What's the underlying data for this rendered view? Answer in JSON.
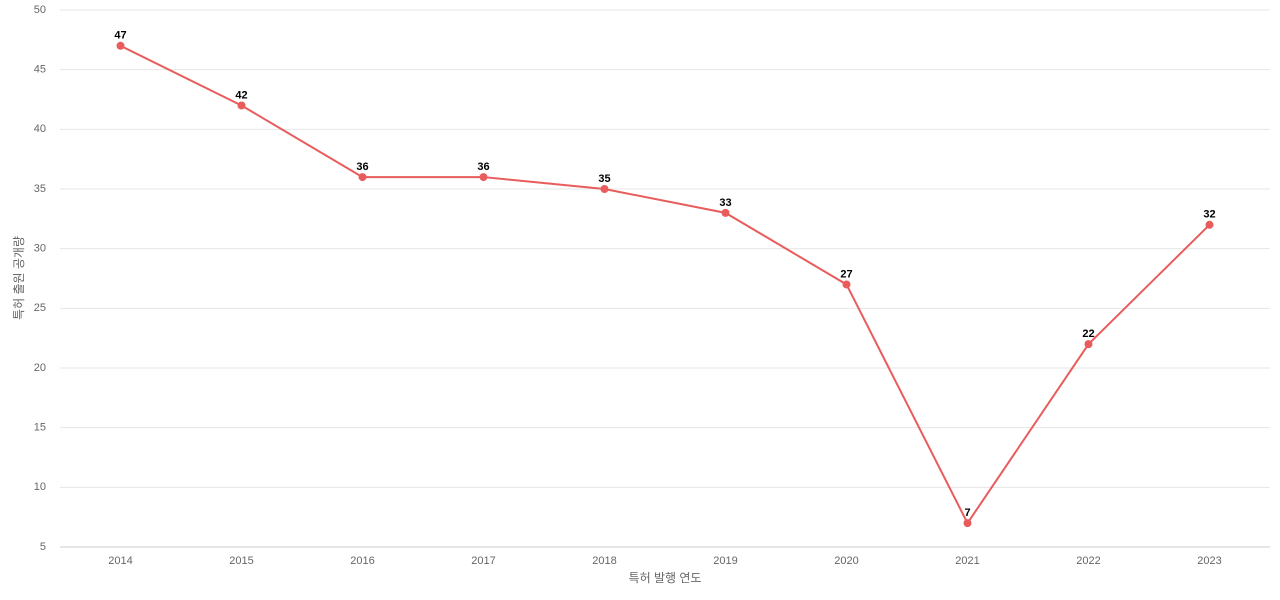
{
  "chart_data": {
    "type": "line",
    "x_label": "특허 발행 연도",
    "y_label": "특허 출원 공개량",
    "categories": [
      "2014",
      "2015",
      "2016",
      "2017",
      "2018",
      "2019",
      "2020",
      "2021",
      "2022",
      "2023"
    ],
    "values": [
      47,
      42,
      36,
      36,
      35,
      33,
      27,
      7,
      22,
      32
    ],
    "color": "#e85c5c",
    "ylim": [
      5,
      50
    ],
    "yticks": [
      5,
      10,
      15,
      20,
      25,
      30,
      35,
      40,
      45,
      50
    ],
    "grid": true
  }
}
